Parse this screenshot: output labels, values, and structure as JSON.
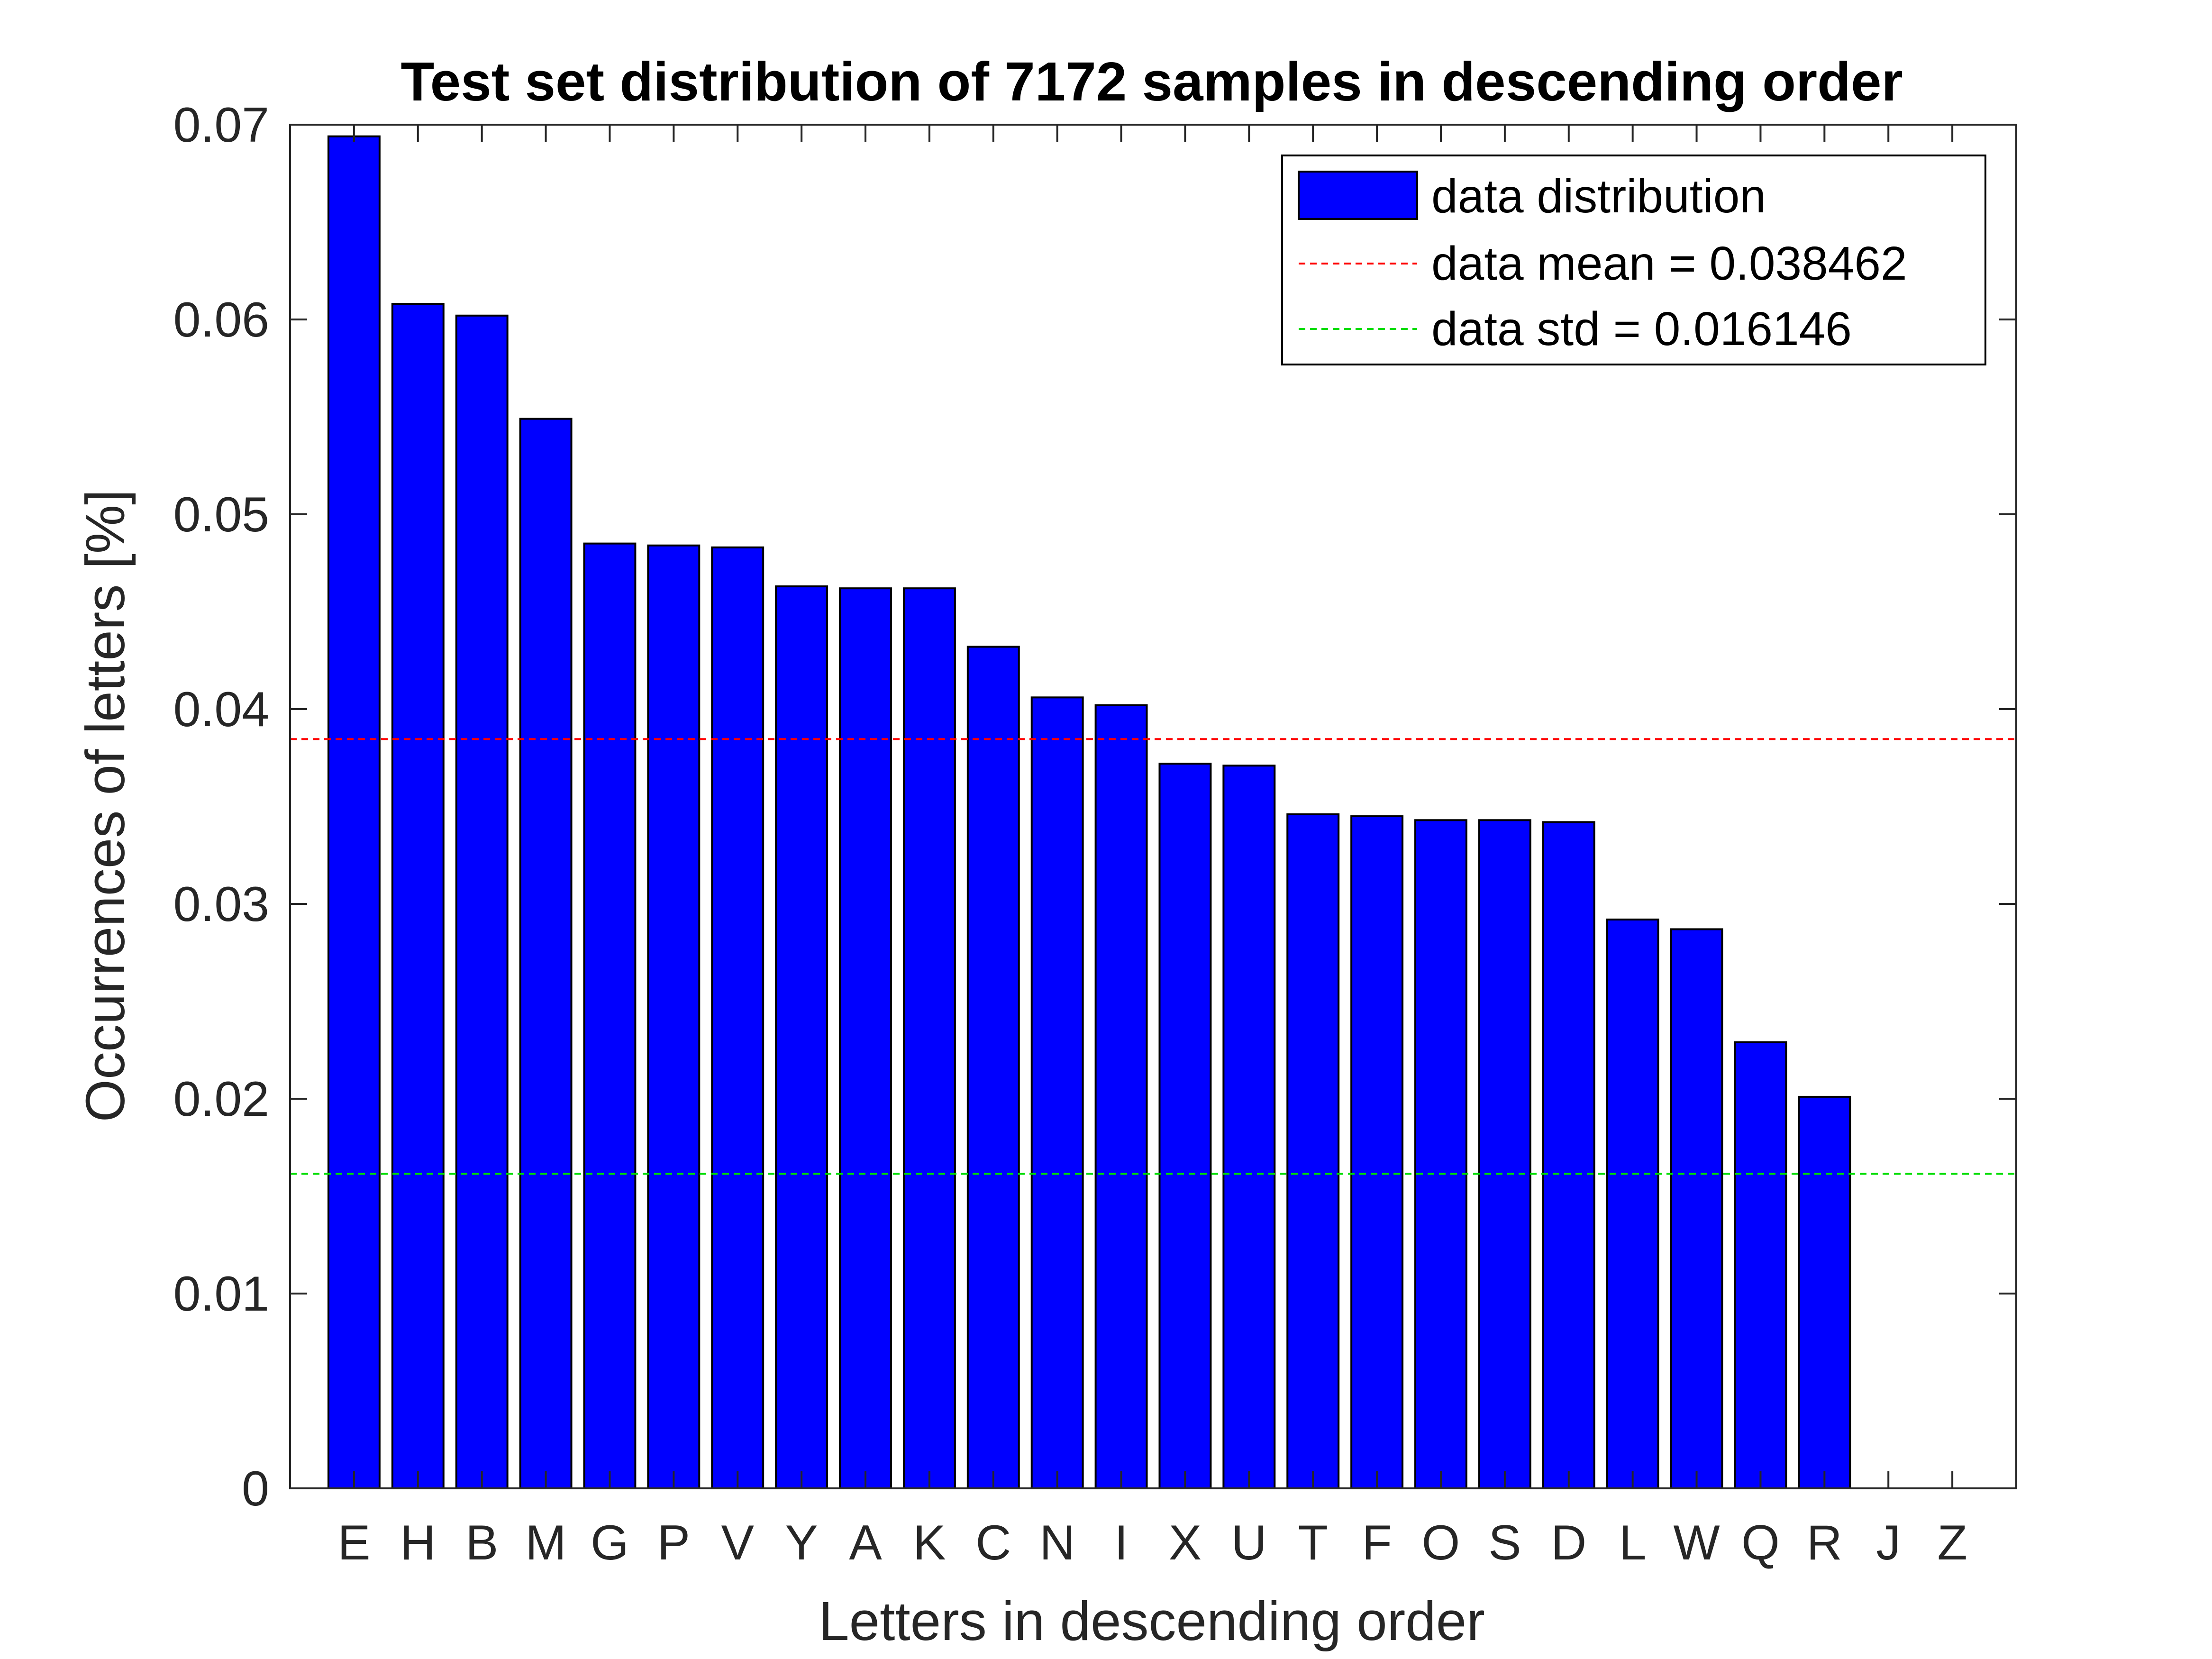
{
  "chart_data": {
    "type": "bar",
    "title": "Test set distribution of 7172 samples in descending order",
    "xlabel": "Letters in descending order",
    "ylabel": "Occurrences of letters [%]",
    "ylim": [
      0,
      0.07
    ],
    "yticks": [
      0,
      0.01,
      0.02,
      0.03,
      0.04,
      0.05,
      0.06,
      0.07
    ],
    "ytick_labels": [
      "0",
      "0.01",
      "0.02",
      "0.03",
      "0.04",
      "0.05",
      "0.06",
      "0.07"
    ],
    "categories": [
      "E",
      "H",
      "B",
      "M",
      "G",
      "P",
      "V",
      "Y",
      "A",
      "K",
      "C",
      "N",
      "I",
      "X",
      "U",
      "T",
      "F",
      "O",
      "S",
      "D",
      "L",
      "W",
      "Q",
      "R",
      "J",
      "Z"
    ],
    "series": [
      {
        "name": "data distribution",
        "color": "#0000ff",
        "values": [
          0.0694,
          0.0608,
          0.0602,
          0.0549,
          0.0485,
          0.0484,
          0.0483,
          0.0463,
          0.0462,
          0.0462,
          0.0432,
          0.0406,
          0.0402,
          0.0372,
          0.0371,
          0.0346,
          0.0345,
          0.0343,
          0.0343,
          0.0342,
          0.0292,
          0.0287,
          0.0229,
          0.0201,
          0,
          0
        ]
      }
    ],
    "reference_lines": [
      {
        "label": "data mean = 0.038462",
        "value": 0.038462,
        "color": "#ff0000"
      },
      {
        "label": "data std = 0.016146",
        "value": 0.016146,
        "color": "#00dd00"
      }
    ],
    "legend_position": "top-right",
    "grid": false
  }
}
